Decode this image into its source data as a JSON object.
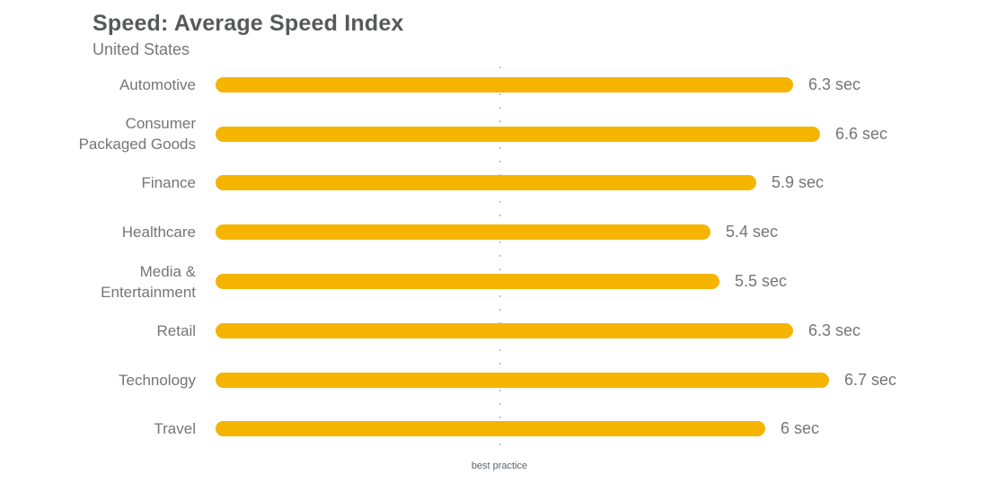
{
  "header": {
    "title": "Speed: Average Speed Index",
    "subtitle": "United States"
  },
  "chart_data": {
    "type": "bar",
    "orientation": "horizontal",
    "title": "Speed: Average Speed Index",
    "subtitle": "United States",
    "unit": "sec",
    "categories": [
      "Automotive",
      "Consumer Packaged Goods",
      "Finance",
      "Healthcare",
      "Media & Entertainment",
      "Retail",
      "Technology",
      "Travel"
    ],
    "label_lines": [
      [
        "Automotive"
      ],
      [
        "Consumer",
        "Packaged Goods"
      ],
      [
        "Finance"
      ],
      [
        "Healthcare"
      ],
      [
        "Media &",
        "Entertainment"
      ],
      [
        "Retail"
      ],
      [
        "Technology"
      ],
      [
        "Travel"
      ]
    ],
    "values": [
      6.3,
      6.6,
      5.9,
      5.4,
      5.5,
      6.3,
      6.7,
      6
    ],
    "value_labels": [
      "6.3 sec",
      "6.6 sec",
      "5.9 sec",
      "5.4 sec",
      "5.5 sec",
      "6.3 sec",
      "6.7 sec",
      "6 sec"
    ],
    "xlim": [
      0,
      8.4
    ],
    "grid": false,
    "legend": null,
    "reference_line": {
      "label": "best practice",
      "value": 3.1
    },
    "bar_color": "#F5B400",
    "label_color": "#757575",
    "title_color": "#58595b",
    "reference_dot_color": "#c6c6c6"
  }
}
